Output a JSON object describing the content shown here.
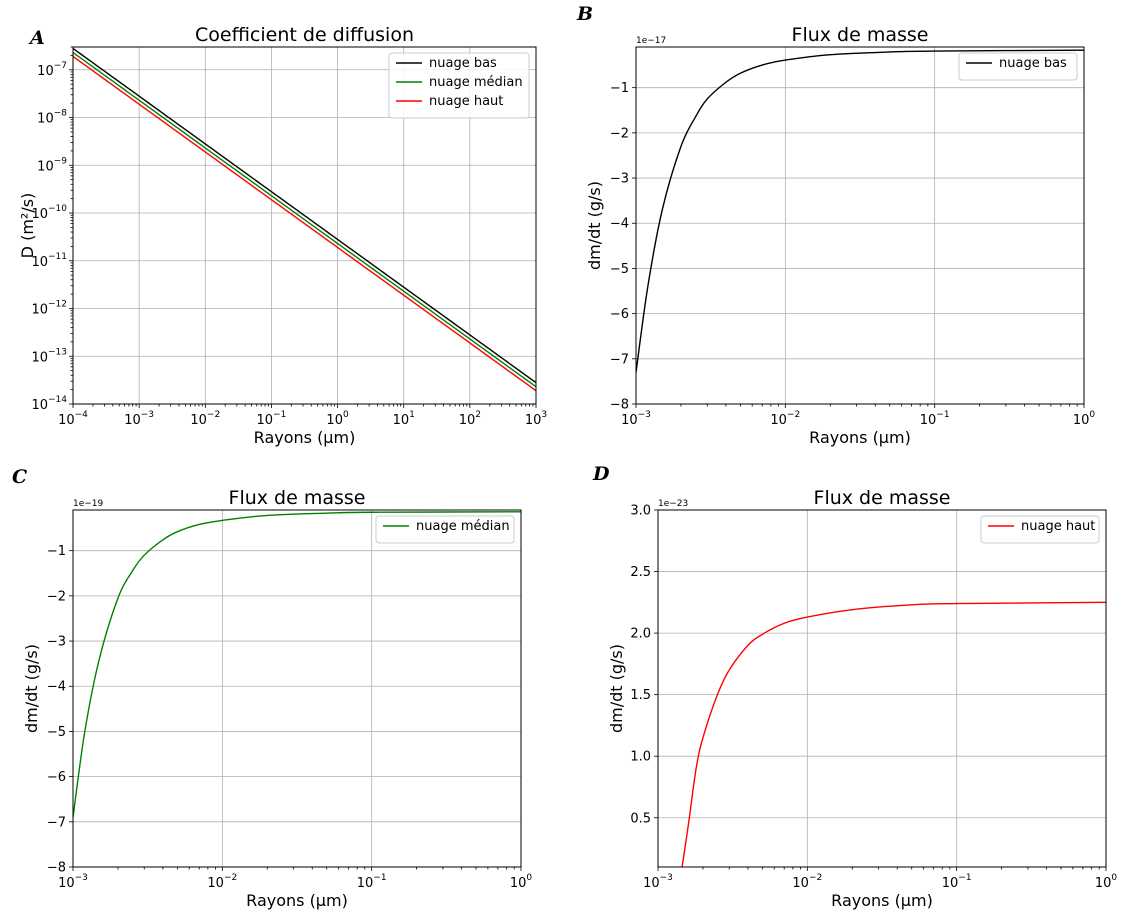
{
  "chart_data": [
    {
      "id": "A",
      "panel_letter": "A",
      "type": "line",
      "title": "Coefficient de diffusion",
      "xlabel": "Rayons (μm)",
      "ylabel": "D (m²/s)",
      "xscale": "log",
      "yscale": "log",
      "xlim": [
        0.0001,
        1000
      ],
      "ylim": [
        1e-14,
        3e-07
      ],
      "xticks": [
        -4,
        -3,
        -2,
        -1,
        0,
        1,
        2,
        3
      ],
      "yticks": [
        -14,
        -13,
        -12,
        -11,
        -10,
        -9,
        -8,
        -7
      ],
      "grid": true,
      "legend": "top-right",
      "series": [
        {
          "name": "nuage bas",
          "color": "#000000",
          "x": [
            0.0001,
            1000
          ],
          "y": [
            2.8e-07,
            2.8e-14
          ]
        },
        {
          "name": "nuage médian",
          "color": "#008000",
          "x": [
            0.0001,
            1000
          ],
          "y": [
            2.3e-07,
            2.3e-14
          ]
        },
        {
          "name": "nuage haut",
          "color": "#ff0000",
          "x": [
            0.0001,
            1000
          ],
          "y": [
            1.9e-07,
            1.9e-14
          ]
        }
      ]
    },
    {
      "id": "B",
      "panel_letter": "B",
      "type": "line",
      "title": "Flux de masse",
      "xlabel": "Rayons (μm)",
      "ylabel": "dm/dt (g/s)",
      "xscale": "log",
      "xlim": [
        0.001,
        1
      ],
      "ylim": [
        -8,
        -0.1
      ],
      "y_inverted": true,
      "y_offset_text": "1e−17",
      "xticks": [
        -3,
        -2,
        -1,
        0
      ],
      "yticks": [
        -8,
        -7,
        -6,
        -5,
        -4,
        -3,
        -2,
        -1
      ],
      "grid": true,
      "legend": "top-right",
      "series": [
        {
          "name": "nuage bas",
          "color": "#000000",
          "x": [
            0.001,
            0.0012,
            0.0015,
            0.002,
            0.0025,
            0.003,
            0.004,
            0.005,
            0.007,
            0.01,
            0.02,
            0.05,
            0.1,
            1
          ],
          "y": [
            -7.3,
            -5.4,
            -3.7,
            -2.3,
            -1.65,
            -1.25,
            -0.88,
            -0.68,
            -0.5,
            -0.39,
            -0.27,
            -0.21,
            -0.19,
            -0.17
          ]
        }
      ]
    },
    {
      "id": "C",
      "panel_letter": "C",
      "type": "line",
      "title": "Flux de masse",
      "xlabel": "Rayons (μm)",
      "ylabel": "dm/dt (g/s)",
      "xscale": "log",
      "xlim": [
        0.001,
        1
      ],
      "ylim": [
        -8,
        -0.1
      ],
      "y_inverted": true,
      "y_offset_text": "1e−19",
      "xticks": [
        -3,
        -2,
        -1,
        0
      ],
      "yticks": [
        -8,
        -7,
        -6,
        -5,
        -4,
        -3,
        -2,
        -1
      ],
      "grid": true,
      "legend": "top-right",
      "series": [
        {
          "name": "nuage médian",
          "color": "#008000",
          "x": [
            0.001,
            0.0012,
            0.0015,
            0.002,
            0.0025,
            0.003,
            0.004,
            0.005,
            0.007,
            0.01,
            0.02,
            0.05,
            0.1,
            1
          ],
          "y": [
            -6.9,
            -5.0,
            -3.4,
            -2.05,
            -1.45,
            -1.1,
            -0.76,
            -0.58,
            -0.42,
            -0.33,
            -0.22,
            -0.17,
            -0.15,
            -0.14
          ]
        }
      ]
    },
    {
      "id": "D",
      "panel_letter": "D",
      "type": "line",
      "title": "Flux de masse",
      "xlabel": "Rayons (μm)",
      "ylabel": "dm/dt (g/s)",
      "xscale": "log",
      "xlim": [
        0.001,
        1
      ],
      "ylim": [
        0.1,
        3.0
      ],
      "y_inverted": false,
      "y_offset_text": "1e−23",
      "xticks": [
        -3,
        -2,
        -1,
        0
      ],
      "yticks": [
        0.5,
        1.0,
        1.5,
        2.0,
        2.5,
        3.0
      ],
      "grid": true,
      "legend": "top-right",
      "series": [
        {
          "name": "nuage haut",
          "color": "#ff0000",
          "x": [
            0.00145,
            0.0016,
            0.0018,
            0.002,
            0.0025,
            0.003,
            0.004,
            0.005,
            0.007,
            0.01,
            0.02,
            0.05,
            0.1,
            1
          ],
          "y": [
            0.1,
            0.45,
            0.9,
            1.15,
            1.5,
            1.7,
            1.9,
            1.99,
            2.08,
            2.13,
            2.19,
            2.23,
            2.24,
            2.25
          ]
        }
      ]
    }
  ]
}
